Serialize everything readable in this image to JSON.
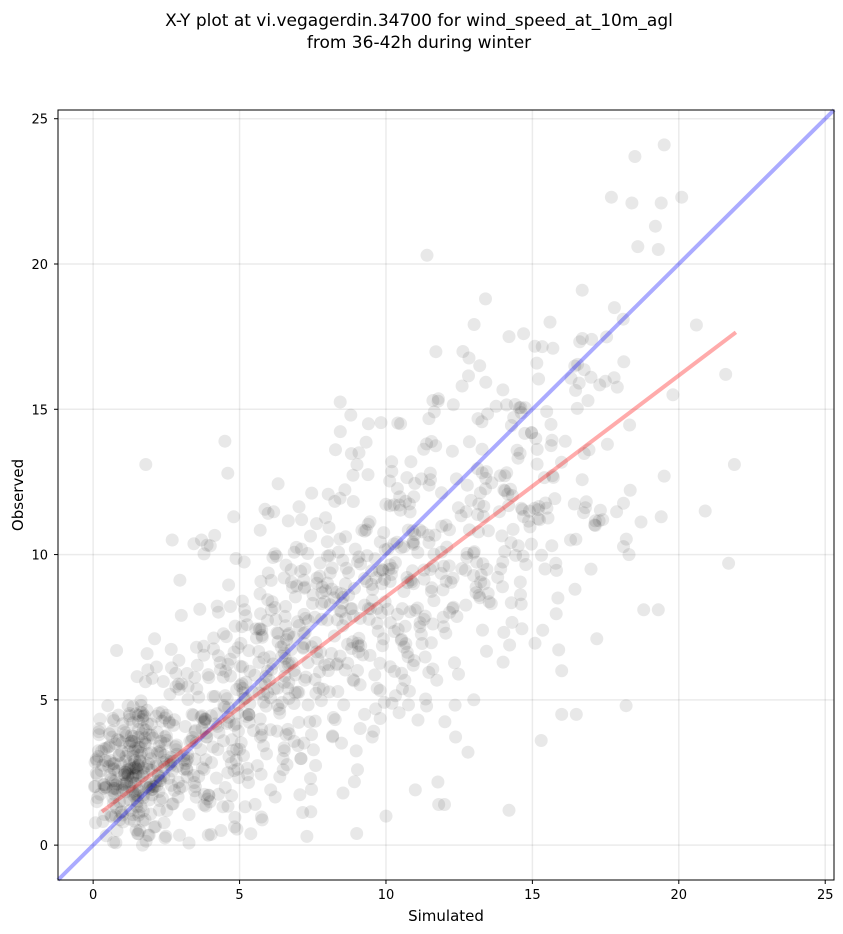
{
  "chart_data": {
    "type": "scatter",
    "title_lines": [
      "X-Y plot at vi.vegagerdin.34700 for wind_speed_at_10m_agl",
      "from 36-42h during winter"
    ],
    "xlabel": "Simulated",
    "ylabel": "Observed",
    "xlim": [
      -1.2,
      25.3
    ],
    "ylim": [
      -1.2,
      25.3
    ],
    "xticks": [
      0,
      5,
      10,
      15,
      20,
      25
    ],
    "yticks": [
      0,
      5,
      10,
      15,
      20,
      25
    ],
    "grid": true,
    "point_color": "#000000",
    "point_alpha": 0.09,
    "identity_line": {
      "color": "#0000ff",
      "alpha": 0.33,
      "from": [
        -1.2,
        -1.2
      ],
      "to": [
        25.3,
        25.3
      ]
    },
    "fit_line": {
      "color": "#ff0000",
      "alpha": 0.33,
      "from": [
        0.3,
        1.15
      ],
      "to": [
        21.95,
        17.65
      ]
    },
    "points_description_free": true,
    "outliers": [
      [
        1.8,
        13.1
      ],
      [
        4.5,
        13.9
      ],
      [
        4.6,
        12.8
      ],
      [
        11.4,
        20.3
      ],
      [
        13.4,
        18.8
      ],
      [
        14.2,
        1.2
      ],
      [
        15.3,
        3.6
      ],
      [
        16.0,
        4.5
      ],
      [
        16.5,
        4.5
      ],
      [
        18.2,
        4.8
      ],
      [
        16.0,
        6.0
      ],
      [
        19.5,
        24.1
      ],
      [
        18.5,
        23.7
      ],
      [
        17.7,
        22.3
      ],
      [
        20.1,
        22.3
      ],
      [
        18.4,
        22.1
      ],
      [
        19.4,
        22.1
      ],
      [
        19.2,
        21.3
      ],
      [
        19.3,
        20.5
      ],
      [
        18.6,
        20.6
      ],
      [
        21.9,
        13.1
      ],
      [
        21.7,
        9.7
      ],
      [
        20.9,
        11.5
      ],
      [
        21.6,
        16.2
      ],
      [
        20.6,
        17.9
      ],
      [
        19.8,
        15.5
      ],
      [
        19.5,
        12.7
      ],
      [
        19.4,
        11.3
      ],
      [
        19.3,
        8.1
      ],
      [
        18.8,
        8.1
      ],
      [
        18.3,
        10.0
      ],
      [
        17.8,
        18.5
      ],
      [
        18.1,
        18.1
      ],
      [
        16.7,
        19.1
      ],
      [
        15.6,
        18.0
      ],
      [
        15.7,
        17.1
      ],
      [
        14.7,
        17.6
      ],
      [
        14.2,
        17.5
      ],
      [
        9.0,
        0.4
      ],
      [
        7.3,
        0.3
      ],
      [
        10.0,
        1.0
      ],
      [
        11.0,
        1.9
      ],
      [
        12.8,
        3.2
      ],
      [
        11.8,
        1.4
      ],
      [
        12.0,
        1.4
      ],
      [
        13.0,
        5.0
      ],
      [
        14.0,
        6.3
      ],
      [
        15.8,
        9.7
      ],
      [
        17.2,
        7.1
      ],
      [
        0.8,
        6.7
      ],
      [
        0.5,
        4.8
      ],
      [
        2.1,
        7.1
      ],
      [
        2.7,
        10.5
      ],
      [
        3.7,
        10.5
      ],
      [
        4.0,
        10.3
      ],
      [
        4.8,
        11.3
      ],
      [
        1.5,
        5.8
      ],
      [
        0.7,
        0.1
      ],
      [
        0.2,
        3.9
      ],
      [
        8.8,
        14.8
      ],
      [
        9.4,
        14.5
      ],
      [
        10.5,
        14.5
      ],
      [
        12.6,
        15.8
      ],
      [
        13.2,
        16.5
      ],
      [
        16.6,
        15.9
      ],
      [
        17.0,
        16.1
      ],
      [
        16.9,
        15.3
      ],
      [
        17.4,
        11.2
      ],
      [
        17.0,
        9.5
      ],
      [
        16.3,
        10.5
      ]
    ]
  }
}
